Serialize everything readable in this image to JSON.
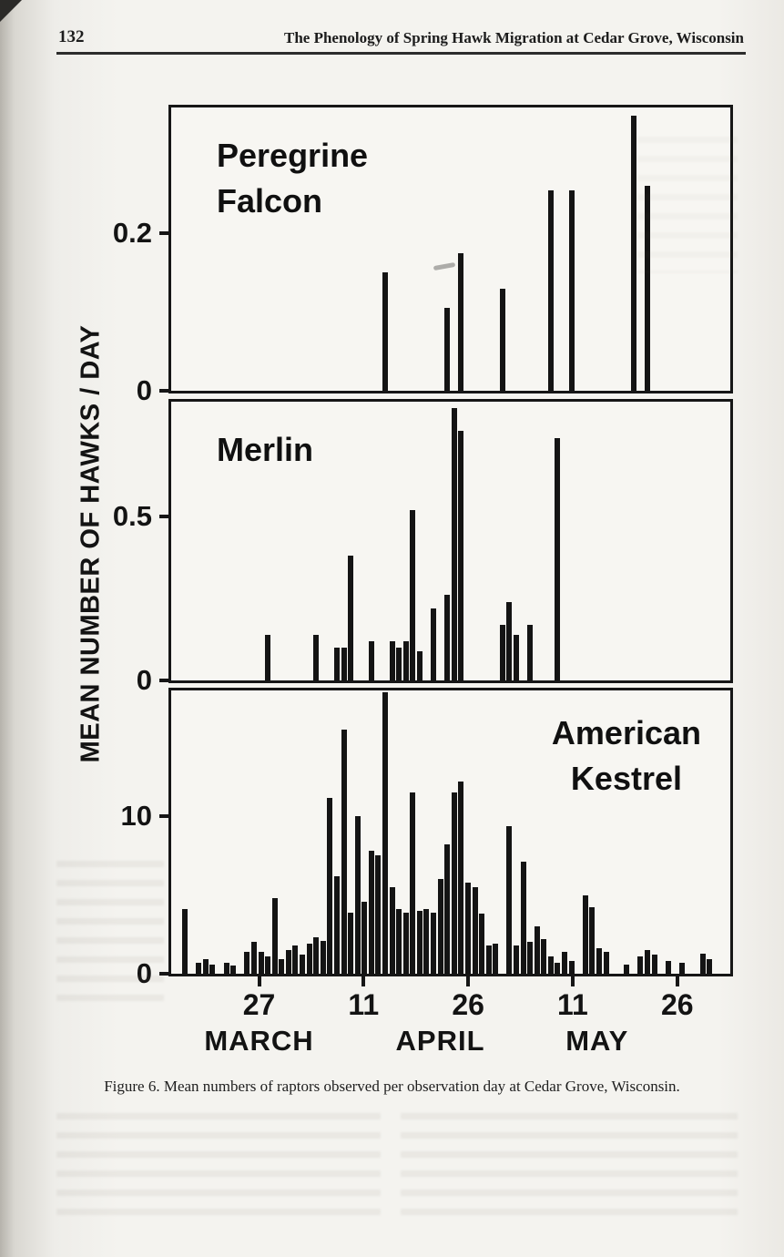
{
  "page": {
    "number": "132",
    "running_title": "The Phenology of Spring Hawk Migration at Cedar Grove, Wisconsin",
    "caption": "Figure 6. Mean numbers of raptors observed per observation day at Cedar Grove, Wisconsin."
  },
  "figure": {
    "y_axis_label": "MEAN NUMBER OF HAWKS / DAY"
  },
  "chart_data": [
    {
      "type": "bar",
      "title": "Peregrine Falcon",
      "title_lines": [
        "Peregrine",
        "Falcon"
      ],
      "title_align": "left",
      "x_unit": "day offset (0 = March 14)",
      "xlim_days": [
        0,
        81
      ],
      "ylim": [
        0,
        0.36
      ],
      "yticks": [
        {
          "value": 0.2,
          "label": "0.2"
        },
        {
          "value": 0,
          "label": "0"
        }
      ],
      "bars": [
        [
          31,
          0.15
        ],
        [
          40,
          0.105
        ],
        [
          42,
          0.175
        ],
        [
          48,
          0.13
        ],
        [
          55,
          0.255
        ],
        [
          58,
          0.255
        ],
        [
          67,
          0.35
        ],
        [
          69,
          0.26
        ]
      ]
    },
    {
      "type": "bar",
      "title": "Merlin",
      "title_lines": [
        "Merlin"
      ],
      "title_align": "left",
      "x_unit": "day offset (0 = March 14)",
      "xlim_days": [
        0,
        81
      ],
      "ylim": [
        0,
        0.85
      ],
      "yticks": [
        {
          "value": 0.5,
          "label": "0.5"
        },
        {
          "value": 0,
          "label": "0"
        }
      ],
      "bars": [
        [
          14,
          0.14
        ],
        [
          21,
          0.14
        ],
        [
          24,
          0.1
        ],
        [
          25,
          0.1
        ],
        [
          26,
          0.38
        ],
        [
          29,
          0.12
        ],
        [
          32,
          0.12
        ],
        [
          33,
          0.1
        ],
        [
          34,
          0.12
        ],
        [
          35,
          0.52
        ],
        [
          36,
          0.09
        ],
        [
          38,
          0.22
        ],
        [
          40,
          0.26
        ],
        [
          41,
          0.83
        ],
        [
          42,
          0.76
        ],
        [
          48,
          0.17
        ],
        [
          49,
          0.24
        ],
        [
          50,
          0.14
        ],
        [
          52,
          0.17
        ],
        [
          56,
          0.74
        ]
      ]
    },
    {
      "type": "bar",
      "title": "American Kestrel",
      "title_lines": [
        "American",
        "Kestrel"
      ],
      "title_align": "right",
      "x_unit": "day offset (0 = March 14)",
      "xlim_days": [
        0,
        81
      ],
      "ylim": [
        0,
        18
      ],
      "yticks": [
        {
          "value": 10,
          "label": "10"
        },
        {
          "value": 0,
          "label": "0"
        }
      ],
      "bars": [
        [
          2,
          4.1
        ],
        [
          4,
          0.7
        ],
        [
          5,
          0.9
        ],
        [
          6,
          0.6
        ],
        [
          8,
          0.7
        ],
        [
          9,
          0.5
        ],
        [
          11,
          1.4
        ],
        [
          12,
          2.0
        ],
        [
          13,
          1.4
        ],
        [
          14,
          1.1
        ],
        [
          15,
          4.8
        ],
        [
          16,
          0.9
        ],
        [
          17,
          1.5
        ],
        [
          18,
          1.8
        ],
        [
          19,
          1.2
        ],
        [
          20,
          1.9
        ],
        [
          21,
          2.3
        ],
        [
          22,
          2.1
        ],
        [
          23,
          11.2
        ],
        [
          24,
          6.2
        ],
        [
          25,
          15.5
        ],
        [
          26,
          3.9
        ],
        [
          27,
          10.0
        ],
        [
          28,
          4.6
        ],
        [
          29,
          7.8
        ],
        [
          30,
          7.5
        ],
        [
          31,
          17.9
        ],
        [
          32,
          5.5
        ],
        [
          33,
          4.1
        ],
        [
          34,
          3.9
        ],
        [
          35,
          11.5
        ],
        [
          36,
          4.0
        ],
        [
          37,
          4.1
        ],
        [
          38,
          3.9
        ],
        [
          39,
          6.0
        ],
        [
          40,
          8.2
        ],
        [
          41,
          11.5
        ],
        [
          42,
          12.2
        ],
        [
          43,
          5.8
        ],
        [
          44,
          5.5
        ],
        [
          45,
          3.8
        ],
        [
          46,
          1.8
        ],
        [
          47,
          1.9
        ],
        [
          49,
          9.4
        ],
        [
          50,
          1.8
        ],
        [
          51,
          7.1
        ],
        [
          52,
          2.0
        ],
        [
          53,
          3.0
        ],
        [
          54,
          2.2
        ],
        [
          55,
          1.1
        ],
        [
          56,
          0.7
        ],
        [
          57,
          1.4
        ],
        [
          58,
          0.8
        ],
        [
          60,
          5.0
        ],
        [
          61,
          4.2
        ],
        [
          62,
          1.6
        ],
        [
          63,
          1.4
        ],
        [
          66,
          0.6
        ],
        [
          68,
          1.1
        ],
        [
          69,
          1.5
        ],
        [
          70,
          1.2
        ],
        [
          72,
          0.8
        ],
        [
          74,
          0.7
        ],
        [
          77,
          1.3
        ],
        [
          78,
          0.9
        ]
      ],
      "xticks": [
        {
          "day": 13,
          "label": "27"
        },
        {
          "day": 28,
          "label": "11"
        },
        {
          "day": 43,
          "label": "26"
        },
        {
          "day": 58,
          "label": "11"
        },
        {
          "day": 73,
          "label": "26"
        }
      ],
      "month_labels": [
        {
          "label": "MARCH",
          "center_day": 13
        },
        {
          "label": "APRIL",
          "center_day": 39
        },
        {
          "label": "MAY",
          "center_day": 61.5
        }
      ]
    }
  ]
}
